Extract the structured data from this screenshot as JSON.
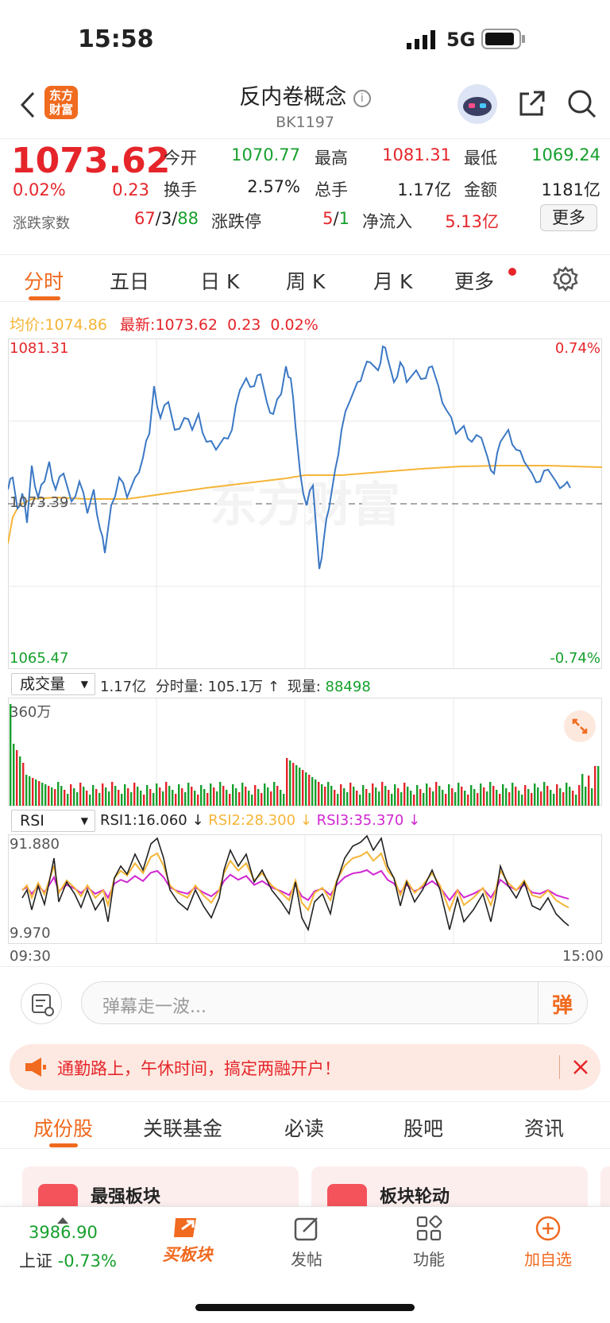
{
  "status": {
    "time": "15:58",
    "network": "5G"
  },
  "nav": {
    "logo": "东方财富",
    "title": "反内卷概念",
    "code": "BK1197"
  },
  "quote": {
    "price": "1073.62",
    "change_pct": "0.02%",
    "change": "0.23",
    "open_label": "今开",
    "open": "1070.77",
    "high_label": "最高",
    "high": "1081.31",
    "low_label": "最低",
    "low": "1069.24",
    "turnover_label": "换手",
    "turnover": "2.57%",
    "volume_label": "总手",
    "volume": "1.17亿",
    "amount_label": "金额",
    "amount": "1181亿",
    "breadth_label": "涨跌家数",
    "breadth_up": "67",
    "breadth_flat": "3",
    "breadth_down": "88",
    "limit_label": "涨跌停",
    "limit_up": "5",
    "limit_down": "1",
    "netflow_label": "净流入",
    "netflow": "5.13亿",
    "more_label": "更多"
  },
  "tabs": [
    "分时",
    "五日",
    "日 K",
    "周 K",
    "月 K",
    "更多"
  ],
  "intraday": {
    "avg_label": "均价:",
    "avg": "1074.86",
    "latest_label": "最新:",
    "latest": "1073.62",
    "latest_chg": "0.23",
    "latest_pct": "0.02%",
    "y_max": "1081.31",
    "y_min": "1065.47",
    "y_mid": "1073.39",
    "pct_max": "0.74%",
    "pct_min": "-0.74%",
    "watermark": "东方财富"
  },
  "volume": {
    "selector": "成交量",
    "total": "1.17亿",
    "minute_label": "分时量:",
    "minute": "105.1万",
    "current_label": "现量:",
    "current": "88498",
    "y_max": "360万"
  },
  "rsi": {
    "selector": "RSI",
    "rsi1": "RSI1:16.060",
    "rsi2": "RSI2:28.300",
    "rsi3": "RSI3:35.370",
    "y_max": "91.880",
    "y_min": "9.970",
    "time_start": "09:30",
    "time_end": "15:00"
  },
  "danmaku": {
    "placeholder": "弹幕走一波...",
    "button": "弹"
  },
  "banner": {
    "text": "通勤路上，午休时间，搞定两融开户！"
  },
  "bottom_tabs": [
    "成份股",
    "关联基金",
    "必读",
    "股吧",
    "资讯"
  ],
  "cards": [
    "最强板块",
    "板块轮动"
  ],
  "footer": {
    "index_value": "3986.90",
    "index_name": "上证",
    "index_change": "-0.73%",
    "buy": "买板块",
    "post": "发帖",
    "func": "功能",
    "add": "加自选"
  },
  "colors": {
    "accent": "#f06a1f",
    "up": "#e5252a",
    "down": "#16a02d",
    "price_line": "#3b78c4",
    "avg_line": "#f5b537"
  }
}
